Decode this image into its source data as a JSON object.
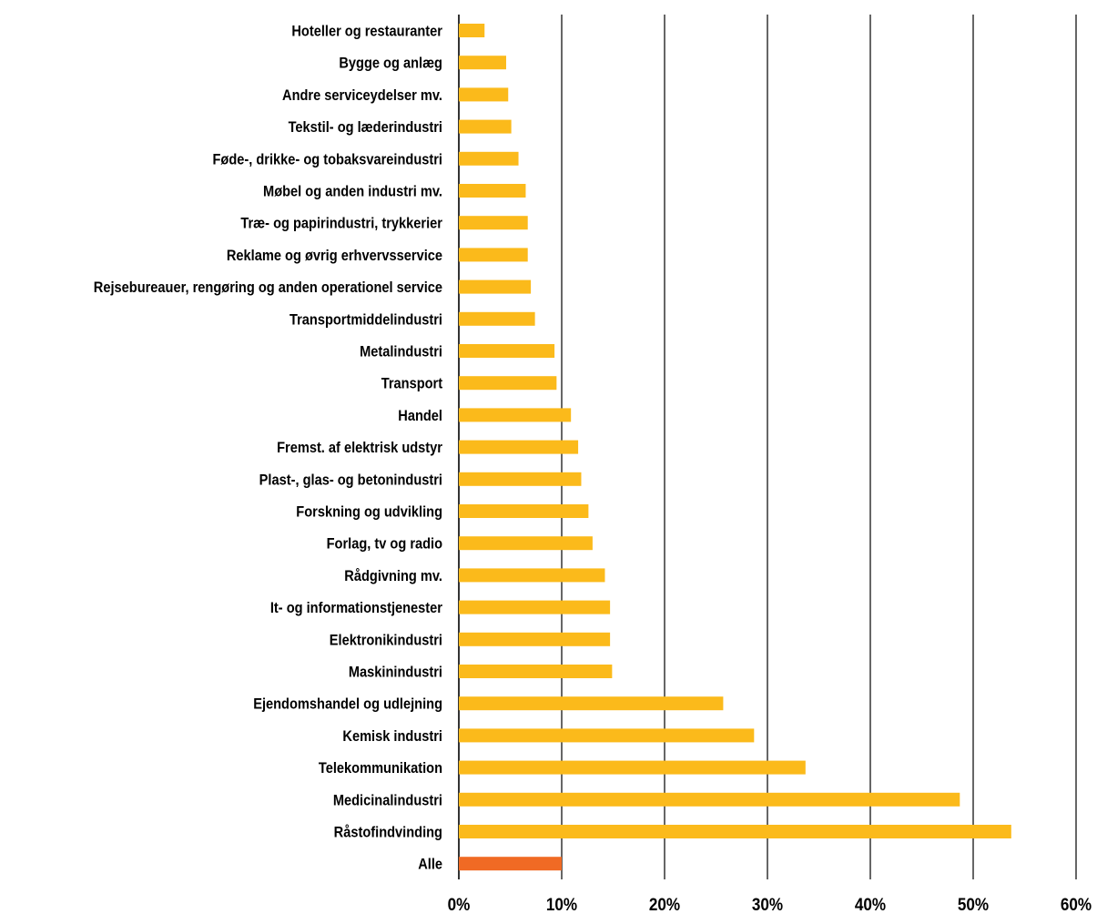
{
  "chart_data": {
    "type": "bar",
    "orientation": "horizontal",
    "title": "",
    "xlabel": "",
    "ylabel": "",
    "categories": [
      "Hoteller og restauranter",
      "Bygge og anlæg",
      "Andre serviceydelser mv.",
      "Tekstil- og læderindustri",
      "Føde-, drikke- og tobaksvareindustri",
      "Møbel og anden industri mv.",
      "Træ- og papirindustri, trykkerier",
      "Reklame og øvrig erhvervsservice",
      "Rejsebureauer, rengøring og anden operationel service",
      "Transportmiddelindustri",
      "Metalindustri",
      "Transport",
      "Handel",
      "Fremst. af elektrisk udstyr",
      "Plast-, glas- og betonindustri",
      "Forskning og udvikling",
      "Forlag, tv og radio",
      "Rådgivning mv.",
      "It- og informationstjenester",
      "Elektronikindustri",
      "Maskinindustri",
      "Ejendomshandel og udlejning",
      "Kemisk industri",
      "Telekommunikation",
      "Medicinalindustri",
      "Råstofindvinding",
      "Alle"
    ],
    "values": [
      2.5,
      4.6,
      4.8,
      5.1,
      5.8,
      6.5,
      6.7,
      6.7,
      7.0,
      7.4,
      9.3,
      9.5,
      10.9,
      11.6,
      11.9,
      12.6,
      13.0,
      14.2,
      14.7,
      14.7,
      14.9,
      25.7,
      28.7,
      33.7,
      48.7,
      53.7,
      10.0
    ],
    "highlight_category": "Alle",
    "xlim": [
      0,
      60
    ],
    "x_ticks": [
      0,
      10,
      20,
      30,
      40,
      50,
      60
    ],
    "x_tick_labels": [
      "0%",
      "10%",
      "20%",
      "30%",
      "40%",
      "50%",
      "60%"
    ],
    "grid": "vertical",
    "legend": "none",
    "colors": {
      "bar": "#FBBA1B",
      "highlight": "#F06A24",
      "grid": "#000000",
      "text": "#000000"
    }
  }
}
